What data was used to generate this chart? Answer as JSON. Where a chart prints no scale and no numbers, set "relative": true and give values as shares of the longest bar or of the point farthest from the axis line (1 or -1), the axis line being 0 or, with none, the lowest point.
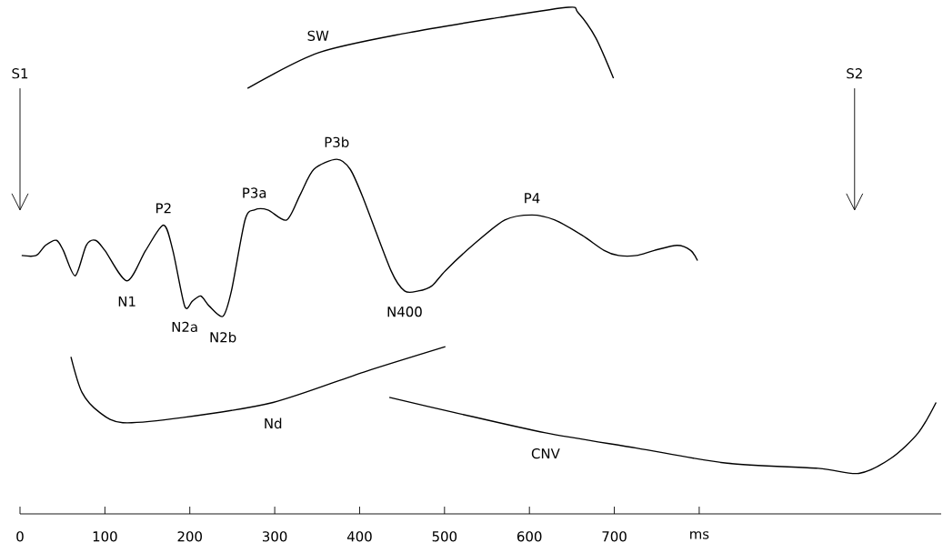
{
  "chart_data": {
    "type": "line",
    "relative": true,
    "tick_labels": "x",
    "xlim": [
      0,
      1085
    ],
    "xticks": [
      0,
      100,
      200,
      300,
      400,
      500,
      600,
      700,
      {
        "value": 800,
        "label": "ms"
      }
    ],
    "series": [
      {
        "color": "#000000",
        "x": [
          2,
          19,
          30,
          43,
          51,
          65,
          78,
          89,
          100,
          126,
          148,
          169,
          180,
          194,
          203,
          213,
          223,
          239,
          249,
          265,
          276,
          292,
          314,
          330,
          346,
          373,
          389,
          405,
          437,
          453,
          469,
          485,
          501,
          533,
          571,
          603,
          630,
          662,
          688,
          705,
          726,
          747,
          774,
          790,
          798
        ],
        "values": [
          0.51,
          0.51,
          0.53,
          0.54,
          0.52,
          0.47,
          0.53,
          0.54,
          0.52,
          0.46,
          0.52,
          0.57,
          0.52,
          0.41,
          0.42,
          0.43,
          0.41,
          0.39,
          0.44,
          0.58,
          0.6,
          0.6,
          0.58,
          0.63,
          0.68,
          0.7,
          0.68,
          0.62,
          0.48,
          0.44,
          0.44,
          0.45,
          0.48,
          0.53,
          0.58,
          0.59,
          0.58,
          0.55,
          0.52,
          0.51,
          0.51,
          0.52,
          0.53,
          0.52,
          0.5
        ]
      },
      {
        "color": "#000000",
        "x": [
          268,
          351,
          458,
          565,
          646,
          657,
          678,
          699
        ],
        "values": [
          0.84,
          0.91,
          0.95,
          0.98,
          1.0,
          0.99,
          0.94,
          0.86
        ]
      },
      {
        "color": "#000000",
        "x": [
          60,
          73,
          94,
          121,
          191,
          298,
          405,
          501
        ],
        "values": [
          0.31,
          0.24,
          0.2,
          0.18,
          0.19,
          0.22,
          0.28,
          0.33
        ]
      },
      {
        "color": "#000000",
        "x": [
          435,
          512,
          619,
          726,
          833,
          940,
          988,
          1026,
          1058,
          1079
        ],
        "values": [
          0.23,
          0.2,
          0.16,
          0.13,
          0.1,
          0.09,
          0.08,
          0.11,
          0.16,
          0.22
        ]
      }
    ],
    "ref_lines": [
      {
        "axis": "x",
        "value": 0,
        "label": "S1"
      },
      {
        "axis": "x",
        "value": 983,
        "label": "S2"
      }
    ],
    "annotations": [
      {
        "text": "SW",
        "x": 351,
        "y": 0.91
      },
      {
        "text": "P2",
        "x": 169,
        "y": 0.57
      },
      {
        "text": "P3a",
        "x": 276,
        "y": 0.6
      },
      {
        "text": "P3b",
        "x": 373,
        "y": 0.7
      },
      {
        "text": "P4",
        "x": 603,
        "y": 0.59
      },
      {
        "text": "N1",
        "x": 126,
        "y": 0.46
      },
      {
        "text": "N2a",
        "x": 194,
        "y": 0.41
      },
      {
        "text": "N2b",
        "x": 239,
        "y": 0.39
      },
      {
        "text": "N400",
        "x": 453,
        "y": 0.44
      },
      {
        "text": "Nd",
        "x": 298,
        "y": 0.22
      },
      {
        "text": "CNV",
        "x": 619,
        "y": 0.16
      }
    ]
  }
}
